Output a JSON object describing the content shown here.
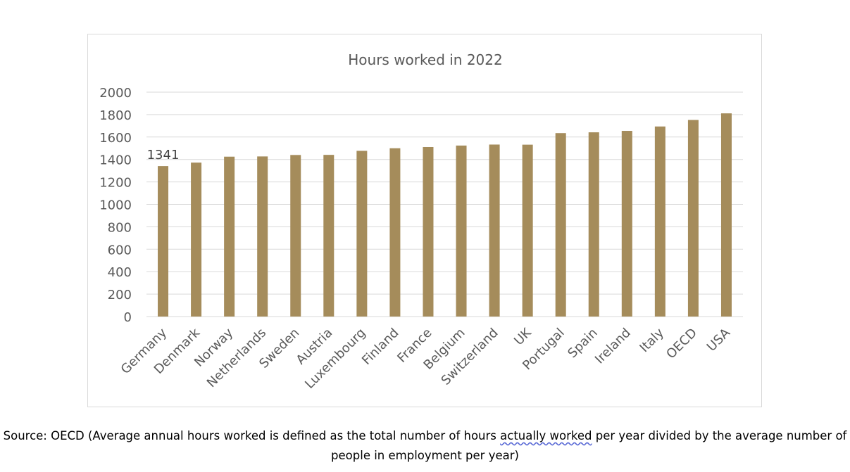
{
  "chart_data": {
    "type": "bar",
    "title": "Hours worked in 2022",
    "xlabel": "",
    "ylabel": "",
    "categories": [
      "Germany",
      "Denmark",
      "Norway",
      "Netherlands",
      "Sweden",
      "Austria",
      "Luxembourg",
      "Finland",
      "France",
      "Belgium",
      "Switzerland",
      "UK",
      "Portugal",
      "Spain",
      "Ireland",
      "Italy",
      "OECD",
      "USA"
    ],
    "values": [
      1341,
      1372,
      1425,
      1427,
      1440,
      1441,
      1477,
      1500,
      1511,
      1524,
      1533,
      1532,
      1635,
      1642,
      1655,
      1694,
      1752,
      1811
    ],
    "ylim": [
      0,
      2000
    ],
    "yticks": [
      "0",
      "200",
      "400",
      "600",
      "800",
      "1000",
      "1200",
      "1400",
      "1600",
      "1800",
      "2000"
    ],
    "ytick_values": [
      0,
      200,
      400,
      600,
      800,
      1000,
      1200,
      1400,
      1600,
      1800,
      2000
    ],
    "data_labels": [
      {
        "category": "Germany",
        "text": "1341"
      }
    ],
    "grid": true,
    "legend": "none",
    "bar_color": "#a58c5b",
    "grid_color": "#d9d9d9"
  },
  "source_note": {
    "prefix": "Source: OECD (Average annual hours worked is defined as the total number of hours ",
    "underlined": "actually worked",
    "suffix": " per year divided by the average number of people in employment per year)"
  }
}
